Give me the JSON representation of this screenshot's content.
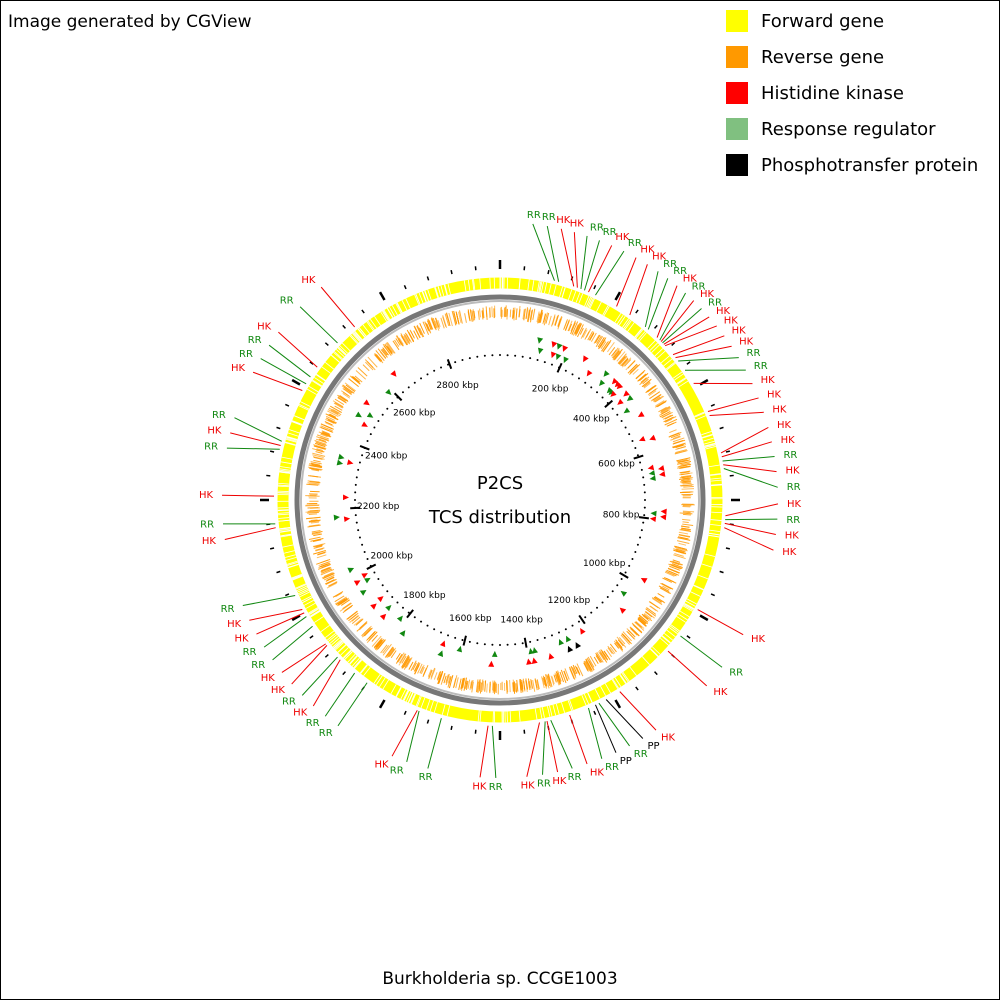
{
  "header": "Image generated by CGView",
  "footer": "Burkholderia sp. CCGE1003",
  "center_title": [
    "P2CS",
    "TCS distribution"
  ],
  "legend": [
    {
      "name": "Forward gene",
      "color": "#ffff00"
    },
    {
      "name": "Reverse gene",
      "color": "#ff9900"
    },
    {
      "name": "Histidine kinase",
      "color": "#ff0000"
    },
    {
      "name": "Response regulator",
      "color": "#80c080"
    },
    {
      "name": "Phosphotransfer protein",
      "color": "#000000"
    }
  ],
  "map": {
    "range_kbp": [
      0,
      2968
    ],
    "ticks": [
      {
        "value": 200,
        "label": "200 kbp"
      },
      {
        "value": 400,
        "label": "400 kbp"
      },
      {
        "value": 600,
        "label": "600 kbp"
      },
      {
        "value": 800,
        "label": "800 kbp"
      },
      {
        "value": 1000,
        "label": "1000 kbp"
      },
      {
        "value": 1200,
        "label": "1200 kbp"
      },
      {
        "value": 1400,
        "label": "1400 kbp"
      },
      {
        "value": 1600,
        "label": "1600 kbp"
      },
      {
        "value": 1800,
        "label": "1800 kbp"
      },
      {
        "value": 2000,
        "label": "2000 kbp"
      },
      {
        "value": 2200,
        "label": "2200 kbp"
      },
      {
        "value": 2400,
        "label": "2400 kbp"
      },
      {
        "value": 2600,
        "label": "2600 kbp"
      },
      {
        "value": 2800,
        "label": "2800 kbp"
      }
    ],
    "label_colors": {
      "HK": "#ee0000",
      "RR": "#118811",
      "PP": "#000000"
    },
    "mark_colors": {
      "HK": "#ff0000",
      "RR": "#118811",
      "PP": "#000000"
    },
    "features": [
      {
        "label": "RR",
        "position_kbp": 115
      },
      {
        "label": "RR",
        "position_kbp": 124
      },
      {
        "label": "HK",
        "position_kbp": 157
      },
      {
        "label": "HK",
        "position_kbp": 165
      },
      {
        "label": "RR",
        "position_kbp": 173
      },
      {
        "label": "RR",
        "position_kbp": 181
      },
      {
        "label": "HK",
        "position_kbp": 190
      },
      {
        "label": "RR",
        "position_kbp": 206
      },
      {
        "label": "HK",
        "position_kbp": 256
      },
      {
        "label": "HK",
        "position_kbp": 289
      },
      {
        "label": "RR",
        "position_kbp": 330
      },
      {
        "label": "RR",
        "position_kbp": 338
      },
      {
        "label": "HK",
        "position_kbp": 363
      },
      {
        "label": "RR",
        "position_kbp": 371
      },
      {
        "label": "HK",
        "position_kbp": 375
      },
      {
        "label": "RR",
        "position_kbp": 379
      },
      {
        "label": "HK",
        "position_kbp": 383
      },
      {
        "label": "HK",
        "position_kbp": 387
      },
      {
        "label": "HK",
        "position_kbp": 412
      },
      {
        "label": "HK",
        "position_kbp": 420
      },
      {
        "label": "RR",
        "position_kbp": 429
      },
      {
        "label": "RR",
        "position_kbp": 453
      },
      {
        "label": "HK",
        "position_kbp": 486
      },
      {
        "label": "HK",
        "position_kbp": 552
      },
      {
        "label": "HK",
        "position_kbp": 561
      },
      {
        "label": "HK",
        "position_kbp": 643
      },
      {
        "label": "HK",
        "position_kbp": 651
      },
      {
        "label": "RR",
        "position_kbp": 660
      },
      {
        "label": "HK",
        "position_kbp": 668
      },
      {
        "label": "RR",
        "position_kbp": 676
      },
      {
        "label": "HK",
        "position_kbp": 775
      },
      {
        "label": "RR",
        "position_kbp": 783
      },
      {
        "label": "HK",
        "position_kbp": 791
      },
      {
        "label": "HK",
        "position_kbp": 800
      },
      {
        "label": "HK",
        "position_kbp": 981
      },
      {
        "label": "RR",
        "position_kbp": 1047
      },
      {
        "label": "HK",
        "position_kbp": 1088
      },
      {
        "label": "HK",
        "position_kbp": 1220
      },
      {
        "label": "PP",
        "position_kbp": 1253
      },
      {
        "label": "RR",
        "position_kbp": 1270
      },
      {
        "label": "PP",
        "position_kbp": 1278
      },
      {
        "label": "RR",
        "position_kbp": 1294
      },
      {
        "label": "HK",
        "position_kbp": 1336
      },
      {
        "label": "RR",
        "position_kbp": 1377
      },
      {
        "label": "HK",
        "position_kbp": 1385
      },
      {
        "label": "RR",
        "position_kbp": 1389
      },
      {
        "label": "HK",
        "position_kbp": 1401
      },
      {
        "label": "RR",
        "position_kbp": 1500
      },
      {
        "label": "HK",
        "position_kbp": 1509
      },
      {
        "label": "RR",
        "position_kbp": 1608
      },
      {
        "label": "RR",
        "position_kbp": 1657
      },
      {
        "label": "HK",
        "position_kbp": 1661
      },
      {
        "label": "RR",
        "position_kbp": 1781
      },
      {
        "label": "RR",
        "position_kbp": 1814
      },
      {
        "label": "HK",
        "position_kbp": 1855
      },
      {
        "label": "RR",
        "position_kbp": 1863
      },
      {
        "label": "HK",
        "position_kbp": 1896
      },
      {
        "label": "HK",
        "position_kbp": 1900
      },
      {
        "label": "RR",
        "position_kbp": 1946
      },
      {
        "label": "RR",
        "position_kbp": 1970
      },
      {
        "label": "HK",
        "position_kbp": 1979
      },
      {
        "label": "HK",
        "position_kbp": 1987
      },
      {
        "label": "RR",
        "position_kbp": 2020
      },
      {
        "label": "HK",
        "position_kbp": 2168
      },
      {
        "label": "RR",
        "position_kbp": 2176
      },
      {
        "label": "HK",
        "position_kbp": 2234
      },
      {
        "label": "RR",
        "position_kbp": 2333
      },
      {
        "label": "HK",
        "position_kbp": 2341
      },
      {
        "label": "RR",
        "position_kbp": 2350
      },
      {
        "label": "HK",
        "position_kbp": 2465
      },
      {
        "label": "RR",
        "position_kbp": 2481
      },
      {
        "label": "RR",
        "position_kbp": 2498
      },
      {
        "label": "HK",
        "position_kbp": 2523
      },
      {
        "label": "RR",
        "position_kbp": 2589
      },
      {
        "label": "HK",
        "position_kbp": 2638
      }
    ]
  }
}
